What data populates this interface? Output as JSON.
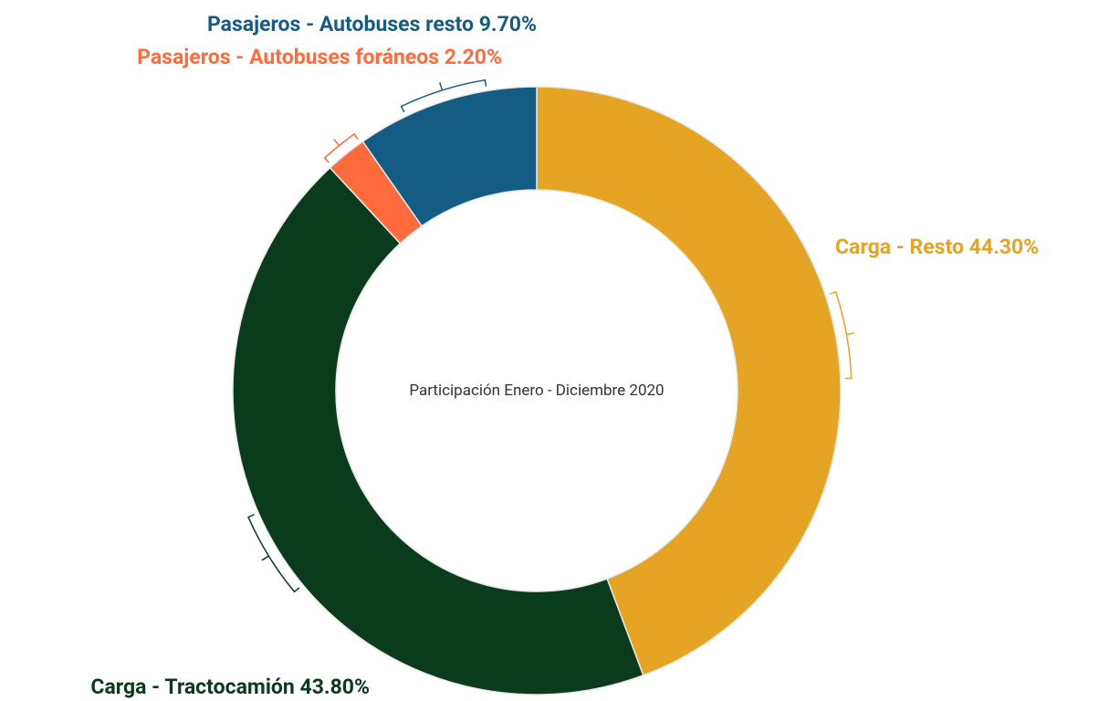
{
  "chart_data": {
    "type": "donut",
    "title": "Participación Enero - Diciembre 2020",
    "categories": [
      "Carga - Resto",
      "Carga - Tractocamión",
      "Pasajeros - Autobuses foráneos",
      "Pasajeros - Autobuses resto"
    ],
    "values": [
      44.3,
      43.8,
      2.2,
      9.7
    ],
    "value_labels": [
      "44.30%",
      "43.80%",
      "2.20%",
      "9.70%"
    ],
    "colors": [
      "#e5a423",
      "#0b3b1d",
      "#ff6b3d",
      "#155c85"
    ]
  }
}
